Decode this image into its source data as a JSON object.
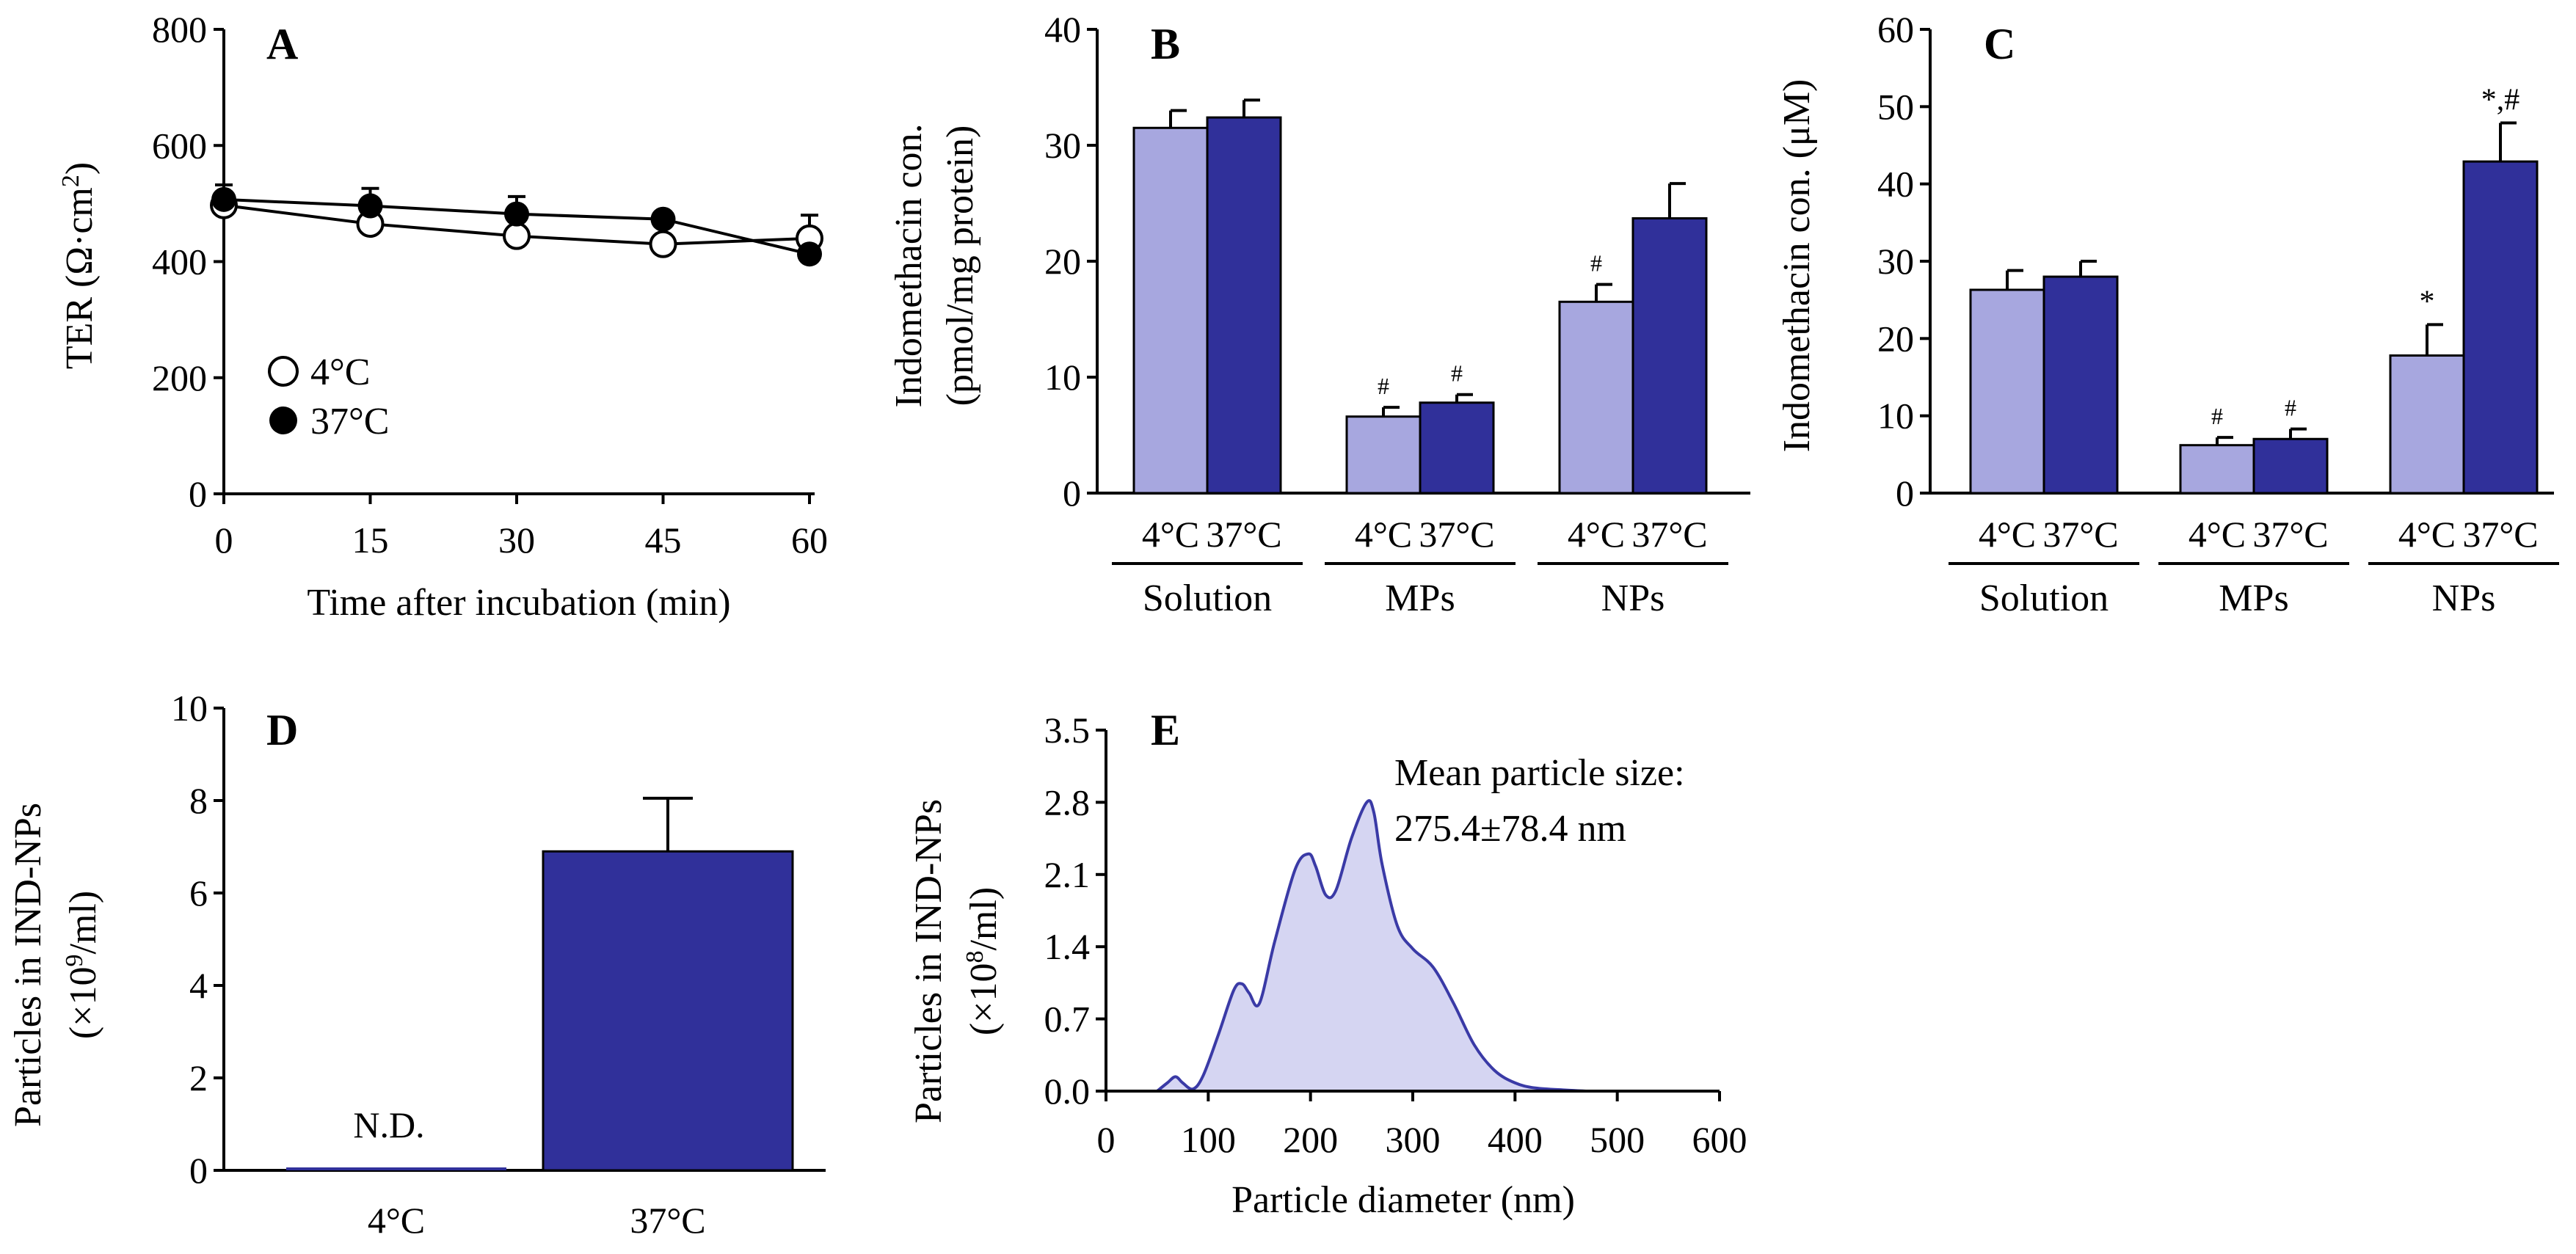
{
  "colors": {
    "light": "#a7a7df",
    "dark": "#30309a",
    "curve": "#3a3aa6",
    "fill": "#d5d5f2"
  },
  "chart_data": [
    {
      "panel": "A",
      "type": "line",
      "xlabel": "Time after incubation (min)",
      "ylabel": "TER (Ω·cm²)",
      "ylabel_main": "TER (Ω·cm",
      "ylabel_sup": "2",
      "ylabel_end": ")",
      "x": [
        0,
        15,
        30,
        45,
        60
      ],
      "xticks": [
        "0",
        "15",
        "30",
        "45",
        "60"
      ],
      "yticks": [
        "0",
        "200",
        "400",
        "600",
        "800"
      ],
      "ylim": [
        0,
        800
      ],
      "xlim": [
        0,
        60
      ],
      "series": [
        {
          "name": "4°C",
          "marker": "open",
          "values": [
            497,
            465,
            444,
            430,
            440
          ],
          "errors": [
            22,
            12,
            10,
            10,
            40
          ]
        },
        {
          "name": "37°C",
          "marker": "filled",
          "values": [
            507,
            496,
            482,
            473,
            413
          ],
          "errors": [
            25,
            30,
            30,
            12,
            10
          ]
        }
      ],
      "legend": [
        "4°C",
        "37°C"
      ]
    },
    {
      "panel": "B",
      "type": "bar",
      "ylabel_line1": "Indomethacin con.",
      "ylabel_line2": "(pmol/mg protein)",
      "ylim": [
        0,
        40
      ],
      "yticks": [
        "0",
        "10",
        "20",
        "30",
        "40"
      ],
      "groups": [
        "Solution",
        "MPs",
        "NPs"
      ],
      "subcategories": [
        "4°C",
        "37°C"
      ],
      "series": [
        {
          "name": "4°C",
          "values": [
            31.5,
            6.6,
            16.5
          ],
          "errors": [
            1.5,
            0.8,
            1.5
          ]
        },
        {
          "name": "37°C",
          "values": [
            32.4,
            7.8,
            23.7
          ],
          "errors": [
            1.5,
            0.7,
            3.0
          ]
        }
      ],
      "annotations": [
        [
          "",
          ""
        ],
        [
          "#",
          "#"
        ],
        [
          "#",
          ""
        ]
      ]
    },
    {
      "panel": "C",
      "type": "bar",
      "ylabel": "Indomethacin con. (μM)",
      "ylim": [
        0,
        60
      ],
      "yticks": [
        "0",
        "10",
        "20",
        "30",
        "40",
        "50",
        "60"
      ],
      "groups": [
        "Solution",
        "MPs",
        "NPs"
      ],
      "subcategories": [
        "4°C",
        "37°C"
      ],
      "series": [
        {
          "name": "4°C",
          "values": [
            26.3,
            6.2,
            17.8
          ],
          "errors": [
            2.5,
            1.0,
            4.0
          ]
        },
        {
          "name": "37°C",
          "values": [
            28.0,
            7.0,
            42.9
          ],
          "errors": [
            2.0,
            1.3,
            5.0
          ]
        }
      ],
      "annotations": [
        [
          "",
          ""
        ],
        [
          "#",
          "#"
        ],
        [
          "*",
          "*,#"
        ]
      ]
    },
    {
      "panel": "D",
      "type": "bar",
      "ylabel_line1": "Particles in IND-NPs",
      "ylabel_line2_pre": "(×10",
      "ylabel_line2_sup": "9",
      "ylabel_line2_post": "/ml)",
      "ylim": [
        0,
        10
      ],
      "yticks": [
        "0",
        "2",
        "4",
        "6",
        "8",
        "10"
      ],
      "categories": [
        "4°C",
        "37°C"
      ],
      "values": [
        0,
        6.9
      ],
      "errors": [
        0,
        1.15
      ],
      "annotation": "N.D."
    },
    {
      "panel": "E",
      "type": "area",
      "xlabel": "Particle diameter (nm)",
      "ylabel_line1": "Particles in IND-NPs",
      "ylabel_line2_pre": "(×10",
      "ylabel_line2_sup": "8",
      "ylabel_line2_post": "/ml)",
      "xlim": [
        0,
        600
      ],
      "ylim": [
        0,
        3.5
      ],
      "xticks": [
        "0",
        "100",
        "200",
        "300",
        "400",
        "500",
        "600"
      ],
      "yticks": [
        "0.0",
        "0.7",
        "1.4",
        "2.1",
        "2.8",
        "3.5"
      ],
      "x": [
        50,
        60,
        68,
        75,
        85,
        95,
        110,
        125,
        133,
        140,
        150,
        165,
        185,
        198,
        205,
        215,
        225,
        240,
        255,
        262,
        270,
        285,
        300,
        320,
        340,
        360,
        380,
        400,
        420,
        450,
        470
      ],
      "y": [
        0,
        0.08,
        0.14,
        0.08,
        0.02,
        0.15,
        0.55,
        0.98,
        1.04,
        0.95,
        0.85,
        1.45,
        2.15,
        2.3,
        2.18,
        1.9,
        1.95,
        2.45,
        2.8,
        2.7,
        2.2,
        1.6,
        1.38,
        1.2,
        0.85,
        0.45,
        0.2,
        0.08,
        0.03,
        0.01,
        0
      ],
      "annotation_line1": "Mean particle size:",
      "annotation_line2": "275.4±78.4  nm"
    }
  ]
}
